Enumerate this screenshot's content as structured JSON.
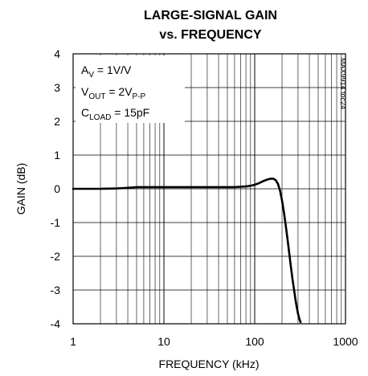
{
  "chart_data": {
    "type": "line",
    "title_line1": "LARGE-SIGNAL GAIN",
    "title_line2": "vs. FREQUENCY",
    "xlabel": "FREQUENCY (kHz)",
    "ylabel": "GAIN (dB)",
    "x_scale": "log",
    "xlim": [
      1,
      1000
    ],
    "ylim": [
      -4,
      4
    ],
    "x_ticks": [
      1,
      10,
      100,
      1000
    ],
    "x_tick_labels": [
      "1",
      "10",
      "100",
      "1000"
    ],
    "y_ticks": [
      4,
      3,
      2,
      1,
      0,
      -1,
      -2,
      -3,
      -4
    ],
    "y_tick_labels": [
      "4",
      "3",
      "2",
      "1",
      "0",
      "-1",
      "-2",
      "-3",
      "-4"
    ],
    "grid": true,
    "annotations": {
      "av": {
        "main": "A",
        "sub": "V",
        "rest": " = 1V/V"
      },
      "vout": {
        "main": "V",
        "sub": "OUT",
        "rest": " = 2V",
        "sub2": "P-P"
      },
      "cload": {
        "main": "C",
        "sub": "LOAD",
        "rest": " = 15pF"
      }
    },
    "figure_tag": "MAX9914 toc24",
    "series": [
      {
        "x": [
          1,
          2,
          3,
          4,
          5,
          6,
          8,
          10,
          15,
          20,
          30,
          40,
          50,
          60,
          70,
          80,
          90,
          100,
          110,
          120,
          130,
          140,
          150,
          160,
          170,
          180,
          190,
          200,
          210,
          220,
          230,
          240,
          250,
          260,
          270,
          280,
          290,
          300,
          310,
          320
        ],
        "y": [
          0.0,
          0.0,
          0.01,
          0.03,
          0.05,
          0.05,
          0.05,
          0.05,
          0.05,
          0.05,
          0.05,
          0.05,
          0.05,
          0.05,
          0.06,
          0.07,
          0.09,
          0.12,
          0.16,
          0.21,
          0.25,
          0.28,
          0.3,
          0.3,
          0.26,
          0.15,
          -0.05,
          -0.35,
          -0.7,
          -1.1,
          -1.5,
          -1.9,
          -2.3,
          -2.65,
          -2.95,
          -3.25,
          -3.5,
          -3.7,
          -3.85,
          -3.95
        ]
      }
    ]
  }
}
